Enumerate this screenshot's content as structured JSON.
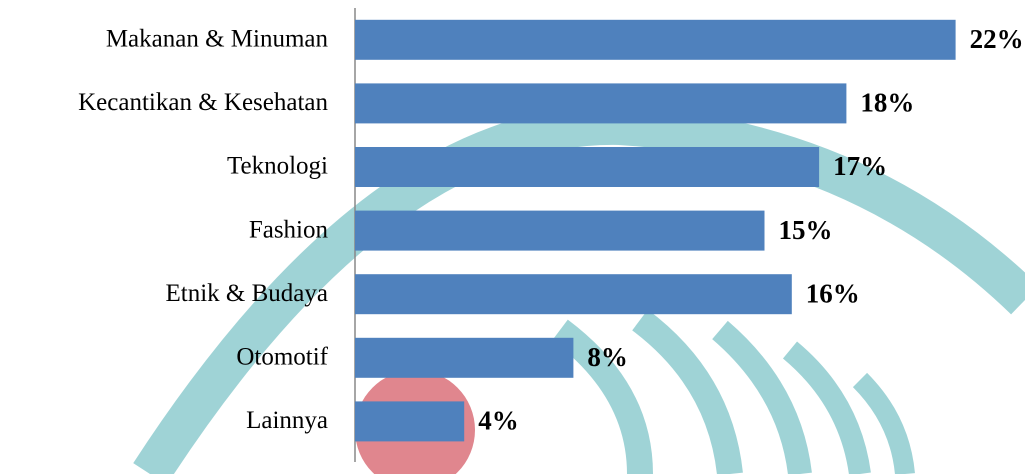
{
  "chart_data": {
    "type": "barh",
    "categories": [
      "Makanan & Minuman",
      "Kecantikan & Kesehatan",
      "Teknologi",
      "Fashion",
      "Etnik & Budaya",
      "Otomotif",
      "Lainnya"
    ],
    "values": [
      22,
      18,
      17,
      15,
      16,
      8,
      4
    ],
    "value_labels": [
      "22%",
      "18%",
      "17%",
      "15%",
      "16%",
      "8%",
      "4%"
    ],
    "color": "#4f81bd"
  }
}
